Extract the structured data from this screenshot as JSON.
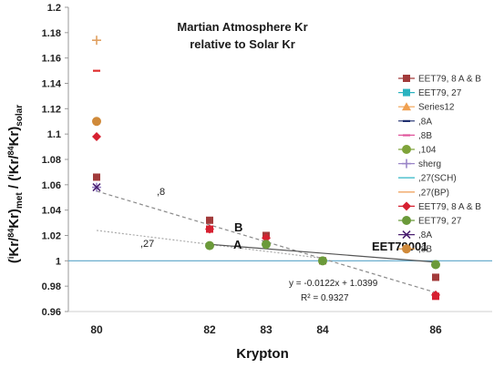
{
  "chart_data": {
    "type": "scatter",
    "title_lines": [
      "Martian Atmosphere  Kr",
      "relative to Solar Kr"
    ],
    "xlabel": "Krypton",
    "ylabel": "(iKr/84Kr)met / (iKr/84Kr)solar",
    "xlim": [
      79.5,
      87
    ],
    "ylim": [
      0.96,
      1.2
    ],
    "x_ticks": [
      80,
      82,
      83,
      84,
      86
    ],
    "y_ticks": [
      0.96,
      0.98,
      1.0,
      1.02,
      1.04,
      1.06,
      1.08,
      1.1,
      1.12,
      1.14,
      1.16,
      1.18,
      1.2
    ],
    "y_tick_labels": [
      "0.96",
      "0.98",
      "1",
      "1.02",
      "1.04",
      "1.06",
      "1.08",
      "1.1",
      "1.12",
      "1.14",
      "1.16",
      "1.18",
      "1.2"
    ],
    "legend_position": "right",
    "series": [
      {
        "name": "EET79, 8 A & B",
        "color": "#a23b3b",
        "marker": "square",
        "points": [
          [
            80,
            1.066
          ],
          [
            82,
            1.032
          ],
          [
            83,
            1.02
          ],
          [
            84,
            1.0
          ],
          [
            86,
            0.987
          ]
        ]
      },
      {
        "name": "EET79, 27",
        "color": "#2bb3c0",
        "marker": "square",
        "points": []
      },
      {
        "name": "Series12",
        "color": "#f0a050",
        "marker": "triangle",
        "points": []
      },
      {
        "name": ",8A",
        "color": "#1f2f6f",
        "marker": "dash",
        "points": []
      },
      {
        "name": ",8B",
        "color": "#e0559b",
        "marker": "dash",
        "points": []
      },
      {
        "name": ",104",
        "color": "#7fa33a",
        "marker": "circle",
        "points": []
      },
      {
        "name": "sherg",
        "color": "#9a86c8",
        "marker": "plus",
        "points": [
          [
            80,
            1.058
          ]
        ]
      },
      {
        "name": ",27(SCH)",
        "color": "#5fc6d2",
        "marker": "line",
        "points": []
      },
      {
        "name": ",27(BP)",
        "color": "#f2b27a",
        "marker": "line",
        "points": []
      },
      {
        "name": "EET79, 8 A & B",
        "color": "#d62030",
        "marker": "diamond",
        "points": [
          [
            80,
            1.098
          ],
          [
            82,
            1.025
          ],
          [
            83,
            1.018
          ],
          [
            86,
            0.973
          ]
        ]
      },
      {
        "name": "EET79, 27",
        "color": "#6b9a3a",
        "marker": "circle",
        "points": [
          [
            82,
            1.012
          ],
          [
            83,
            1.013
          ],
          [
            84,
            1.0
          ],
          [
            86,
            0.997
          ]
        ]
      },
      {
        "name": ",8A",
        "color": "#4a2070",
        "marker": "x",
        "points": [
          [
            80,
            1.058
          ]
        ]
      },
      {
        "name": ",8B",
        "color": "#d08a3a",
        "marker": "circle",
        "points": [
          [
            80,
            1.11
          ]
        ]
      }
    ],
    "extra_points": [
      {
        "x": 80,
        "y": 1.174,
        "color": "#e0a060",
        "marker": "plus"
      },
      {
        "x": 80,
        "y": 1.15,
        "color": "#e03030",
        "marker": "dash"
      },
      {
        "x": 82,
        "y": 1.025,
        "color": "#d62030",
        "marker": "square"
      },
      {
        "x": 86,
        "y": 0.972,
        "color": "#d62030",
        "marker": "square"
      }
    ],
    "reference_line": {
      "y": 1.0,
      "color": "#5aa5c8"
    },
    "fit_lines": [
      {
        "x": [
          80,
          86
        ],
        "y": [
          1.055,
          0.975
        ],
        "color": "#8a8a8a",
        "dash": "4,3"
      },
      {
        "x": [
          80,
          84
        ],
        "y": [
          1.024,
          1.002
        ],
        "color": "#aaaaaa",
        "dash": "2,2"
      },
      {
        "x": [
          82,
          86
        ],
        "y": [
          1.013,
          0.999
        ],
        "color": "#555555",
        "dash": ""
      }
    ],
    "annotations": {
      "label_8": ",8",
      "label_27": ",27",
      "label_B": "B",
      "label_A": "A",
      "eet_label": "EET79001",
      "equation": "y = -0.0122x + 1.0399",
      "r2": "R² = 0.9327"
    }
  }
}
